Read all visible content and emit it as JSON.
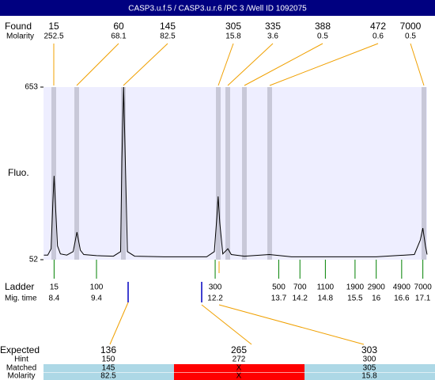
{
  "header": {
    "title": "CASP3.u.f.5 / CASP3.u.r.6 /PC 3 /Well ID 1092075"
  },
  "found": {
    "label": "Found",
    "molarity_label": "Molarity",
    "sizes": [
      15,
      60,
      145,
      305,
      335,
      388,
      472,
      7000
    ],
    "molarity": [
      252.5,
      68.1,
      82.5,
      15.8,
      3.6,
      0.5,
      0.6,
      0.5
    ]
  },
  "chart_data": {
    "type": "line",
    "y_label": "Fluo.",
    "x": [
      8.16,
      8.25,
      8.33,
      8.37,
      8.4,
      8.43,
      8.48,
      8.55,
      8.7,
      8.85,
      8.94,
      9.02,
      9.1,
      9.4,
      9.8,
      9.97,
      10.0,
      10.04,
      10.08,
      10.13,
      10.3,
      11.0,
      12.0,
      12.18,
      12.24,
      12.27,
      12.31,
      12.38,
      12.5,
      12.58,
      12.89,
      13.48,
      14,
      15,
      16,
      16.9,
      17.04,
      17.1,
      17.16,
      17.2
    ],
    "values": [
      68,
      68,
      90,
      250,
      344,
      250,
      100,
      72,
      68,
      80,
      148,
      85,
      70,
      66,
      64,
      80,
      400,
      653,
      400,
      80,
      64,
      62,
      62,
      80,
      200,
      272,
      180,
      72,
      90,
      70,
      64,
      70,
      62,
      62,
      62,
      70,
      120,
      162,
      100,
      70
    ],
    "color": "#000000",
    "xlim": [
      8.15,
      17.2
    ],
    "ylim": [
      52,
      653
    ],
    "yticks": [
      52,
      653
    ]
  },
  "ladder": {
    "label": "Ladder",
    "time_label": "Mig. time",
    "sizes": [
      15,
      100,
      300,
      500,
      700,
      1100,
      1900,
      2900,
      4900,
      7000
    ],
    "mig_times": [
      8.4,
      9.4,
      12.2,
      13.7,
      14.2,
      14.8,
      15.5,
      16,
      16.6,
      17.1
    ]
  },
  "expected": {
    "row_labels": [
      "Expected",
      "Hint",
      "Matched",
      "Molarity"
    ],
    "columns": [
      {
        "expected": 136,
        "hint": 150,
        "matched": 145,
        "molarity": 82.5
      },
      {
        "expected": 265,
        "hint": 272,
        "matched": "X",
        "molarity": "X"
      },
      {
        "expected": 303,
        "hint": 300,
        "matched": 305,
        "molarity": 15.8
      }
    ]
  }
}
